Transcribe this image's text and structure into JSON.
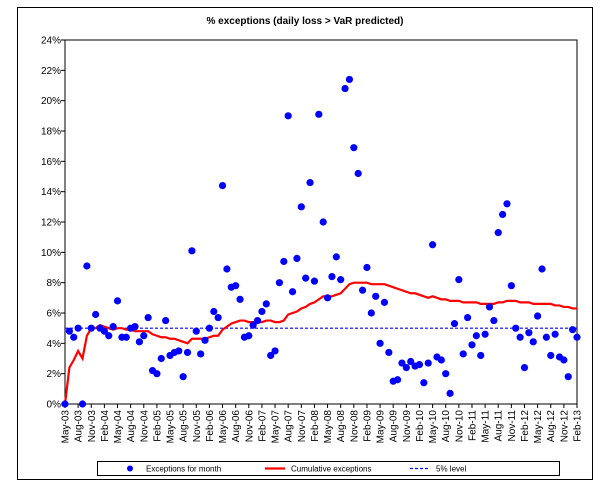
{
  "chart_data": {
    "type": "combo",
    "title": "% exceptions (daily loss > VaR predicted)",
    "categories": [
      "May-03",
      null,
      null,
      "Aug-03",
      null,
      null,
      "Nov-03",
      null,
      null,
      "Feb-04",
      null,
      null,
      "May-04",
      null,
      null,
      "Aug-04",
      null,
      null,
      "Nov-04",
      null,
      null,
      "Feb-05",
      null,
      null,
      "May-05",
      null,
      null,
      "Aug-05",
      null,
      null,
      "Nov-05",
      null,
      null,
      "Feb-06",
      null,
      null,
      "May-06",
      null,
      null,
      "Aug-06",
      null,
      null,
      "Nov-06",
      null,
      null,
      "Feb-07",
      null,
      null,
      "May-07",
      null,
      null,
      "Aug-07",
      null,
      null,
      "Nov-07",
      null,
      null,
      "Feb-08",
      null,
      null,
      "May-08",
      null,
      null,
      "Aug-08",
      null,
      null,
      "Nov-08",
      null,
      null,
      "Feb-09",
      null,
      null,
      "May-09",
      null,
      null,
      "Aug-09",
      null,
      null,
      "Nov-09",
      null,
      null,
      "Feb-10",
      null,
      null,
      "May-10",
      null,
      null,
      "Aug-10",
      null,
      null,
      "Nov-10",
      null,
      null,
      "Feb-11",
      null,
      null,
      "May-11",
      null,
      null,
      "Aug-11",
      null,
      null,
      "Nov-11",
      null,
      null,
      "Feb-12",
      null,
      null,
      "May-12",
      null,
      null,
      "Aug-12",
      null,
      null,
      "Nov-12",
      null,
      null,
      "Feb-13"
    ],
    "series": [
      {
        "name": "Exceptions for month",
        "type": "scatter",
        "color": "#0000ff",
        "values": [
          0,
          4.8,
          4.4,
          5.0,
          0,
          9.1,
          5.0,
          5.9,
          5.0,
          4.8,
          4.5,
          5.1,
          6.8,
          4.4,
          4.4,
          5.0,
          5.1,
          4.1,
          4.5,
          5.7,
          2.2,
          2.0,
          3.0,
          5.5,
          3.2,
          3.4,
          3.5,
          1.8,
          3.4,
          10.1,
          4.8,
          3.3,
          4.2,
          5.0,
          6.1,
          5.7,
          14.4,
          8.9,
          7.7,
          7.8,
          6.9,
          4.4,
          4.5,
          5.2,
          5.5,
          6.1,
          6.6,
          3.2,
          3.5,
          8.0,
          9.4,
          19.0,
          7.4,
          9.6,
          13.0,
          8.3,
          14.6,
          8.1,
          19.1,
          12.0,
          7.0,
          8.4,
          9.7,
          8.2,
          20.8,
          21.4,
          16.9,
          15.2,
          7.5,
          9.0,
          6.0,
          7.1,
          4.0,
          6.7,
          3.4,
          1.5,
          1.6,
          2.7,
          2.4,
          2.8,
          2.5,
          2.6,
          1.4,
          2.7,
          10.5,
          3.1,
          2.9,
          2.0,
          0.7,
          5.3,
          8.2,
          3.3,
          5.7,
          3.9,
          4.5,
          3.2,
          4.6,
          6.4,
          5.5,
          11.3,
          12.5,
          13.2,
          7.8,
          5.0,
          4.4,
          2.4,
          4.7,
          4.1,
          5.8,
          8.9,
          4.4,
          3.2,
          4.6,
          3.1,
          2.9,
          1.8,
          4.9,
          4.4
        ]
      },
      {
        "name": "Cumulative exceptions",
        "type": "line",
        "color": "#ff0000",
        "values": [
          0,
          2.4,
          2.9,
          3.5,
          3.0,
          4.5,
          5.0,
          5.0,
          5.2,
          5.1,
          5.0,
          4.9,
          5.0,
          5.0,
          4.9,
          4.9,
          4.8,
          4.8,
          4.8,
          4.8,
          4.6,
          4.5,
          4.4,
          4.4,
          4.3,
          4.3,
          4.2,
          4.1,
          4.0,
          4.3,
          4.3,
          4.3,
          4.3,
          4.4,
          4.5,
          4.5,
          4.9,
          5.1,
          5.3,
          5.4,
          5.5,
          5.5,
          5.4,
          5.4,
          5.4,
          5.4,
          5.5,
          5.5,
          5.4,
          5.4,
          5.5,
          5.9,
          6.0,
          6.1,
          6.3,
          6.4,
          6.6,
          6.7,
          6.9,
          7.1,
          7.1,
          7.1,
          7.2,
          7.3,
          7.6,
          7.9,
          8.0,
          8.0,
          8.0,
          8.0,
          7.9,
          7.9,
          7.9,
          7.9,
          7.8,
          7.7,
          7.6,
          7.5,
          7.4,
          7.3,
          7.3,
          7.2,
          7.1,
          7.0,
          7.1,
          7.0,
          6.9,
          6.9,
          6.8,
          6.8,
          6.8,
          6.7,
          6.7,
          6.7,
          6.7,
          6.6,
          6.6,
          6.6,
          6.6,
          6.7,
          6.7,
          6.8,
          6.8,
          6.8,
          6.7,
          6.7,
          6.7,
          6.6,
          6.6,
          6.6,
          6.6,
          6.6,
          6.5,
          6.5,
          6.4,
          6.4,
          6.3,
          6.3
        ]
      }
    ],
    "hlines": [
      {
        "name": "5% level",
        "color": "#0000ff",
        "value": 5
      }
    ],
    "ylim": [
      0,
      24
    ],
    "yticks": [
      {
        "value": 0,
        "label": "0%"
      },
      {
        "value": 2,
        "label": "2%"
      },
      {
        "value": 4,
        "label": "4%"
      },
      {
        "value": 6,
        "label": "6%"
      },
      {
        "value": 8,
        "label": "8%"
      },
      {
        "value": 10,
        "label": "10%"
      },
      {
        "value": 12,
        "label": "12%"
      },
      {
        "value": 14,
        "label": "14%"
      },
      {
        "value": 16,
        "label": "16%"
      },
      {
        "value": 18,
        "label": "18%"
      },
      {
        "value": 20,
        "label": "20%"
      },
      {
        "value": 22,
        "label": "22%"
      },
      {
        "value": 24,
        "label": "24%"
      }
    ],
    "legend": "bottom"
  }
}
